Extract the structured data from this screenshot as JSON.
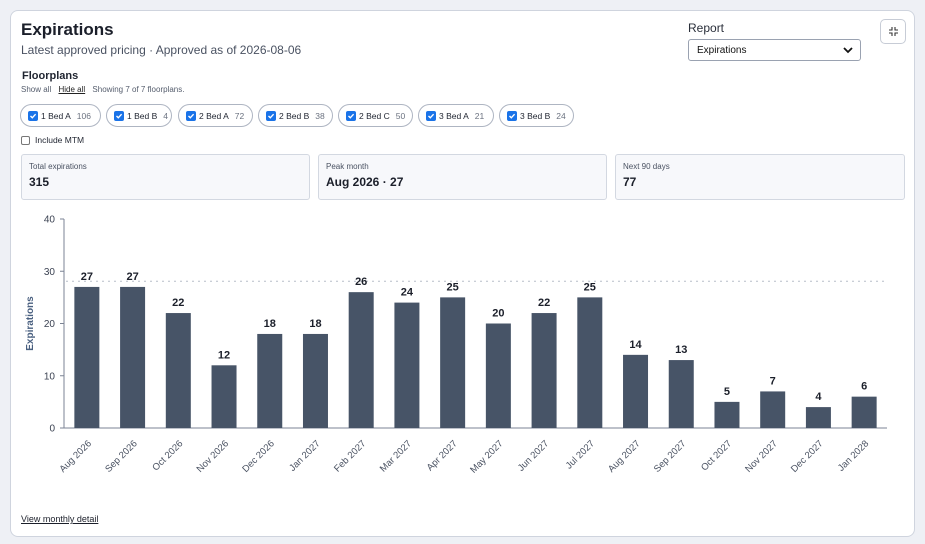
{
  "header": {
    "title": "Expirations",
    "subtitle": "Latest approved pricing · Approved as of 2026-08-06"
  },
  "report": {
    "label": "Report",
    "selected": "Expirations"
  },
  "icons": {
    "collapse": "collapse-icon",
    "dropdown": "chevron-down-icon",
    "checkbox": "checkbox-checked-icon"
  },
  "floorplans": {
    "title": "Floorplans",
    "show_all": "Show all",
    "hide_all": "Hide all",
    "showing": "Showing 7 of 7 floorplans.",
    "items": [
      {
        "label": "1 Bed A",
        "count": "106",
        "checked": true
      },
      {
        "label": "1 Bed B",
        "count": "4",
        "checked": true
      },
      {
        "label": "2 Bed A",
        "count": "72",
        "checked": true
      },
      {
        "label": "2 Bed B",
        "count": "38",
        "checked": true
      },
      {
        "label": "2 Bed C",
        "count": "50",
        "checked": true
      },
      {
        "label": "3 Bed A",
        "count": "21",
        "checked": true
      },
      {
        "label": "3 Bed B",
        "count": "24",
        "checked": true
      }
    ],
    "include_mtm": "Include MTM",
    "include_mtm_checked": false
  },
  "stats": [
    {
      "label": "Total expirations",
      "value": "315"
    },
    {
      "label": "Peak month",
      "value": "Aug 2026 · 27"
    },
    {
      "label": "Next 90 days",
      "value": "77"
    }
  ],
  "footer": {
    "detail_link": "View monthly detail"
  },
  "colors": {
    "bar": "#475467",
    "accent": "#1a73e8"
  },
  "chart_data": {
    "type": "bar",
    "ylabel": "Expirations",
    "xlabel": "",
    "ylim": [
      0,
      40
    ],
    "yticks": [
      0,
      10,
      20,
      30,
      40
    ],
    "reference_line": 28,
    "categories": [
      "Aug 2026",
      "Sep 2026",
      "Oct 2026",
      "Nov 2026",
      "Dec 2026",
      "Jan 2027",
      "Feb 2027",
      "Mar 2027",
      "Apr 2027",
      "May 2027",
      "Jun 2027",
      "Jul 2027",
      "Aug 2027",
      "Sep 2027",
      "Oct 2027",
      "Nov 2027",
      "Dec 2027",
      "Jan 2028"
    ],
    "values": [
      27,
      27,
      22,
      12,
      18,
      18,
      26,
      24,
      25,
      20,
      22,
      25,
      14,
      13,
      5,
      7,
      4,
      6
    ]
  }
}
